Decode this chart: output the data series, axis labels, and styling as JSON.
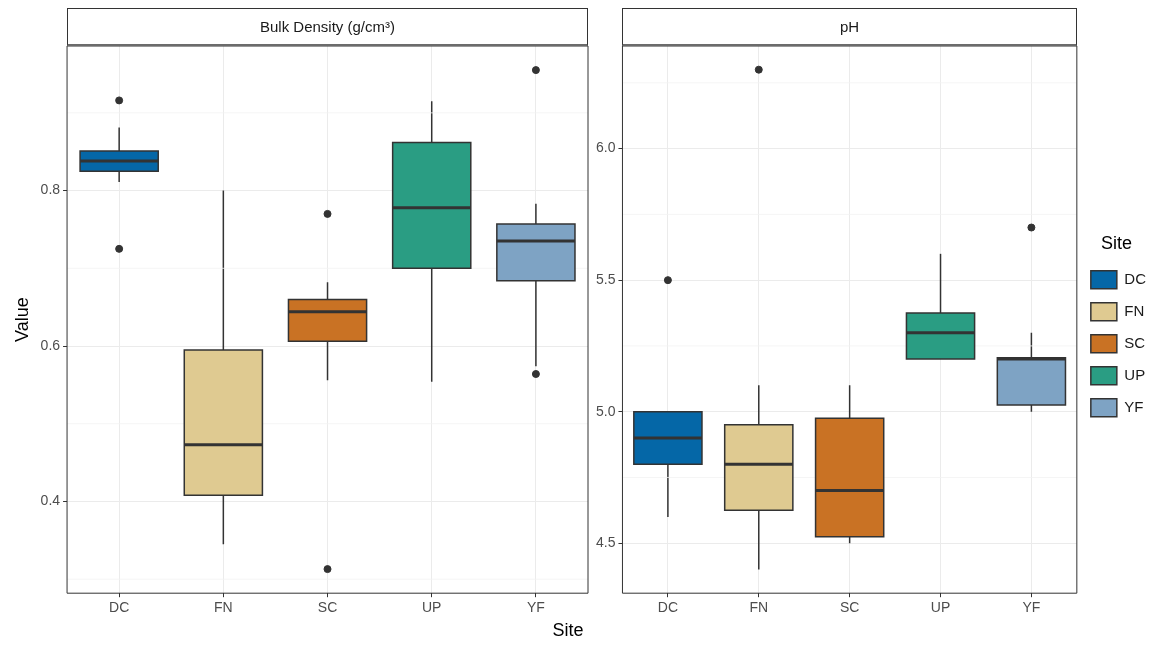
{
  "chart_data": [
    {
      "type": "box",
      "title": "Bulk Density (g/cm³)",
      "ylabel": "Value",
      "xlabel": "Site",
      "categories": [
        "DC",
        "FN",
        "SC",
        "UP",
        "YF"
      ],
      "series": [
        {
          "color": "#0567a7",
          "boxes": [
            {
              "low": 0.811,
              "q1": 0.825,
              "median": 0.838,
              "q3": 0.851,
              "high": 0.881,
              "outliers": [
                0.916,
                0.725
              ]
            },
            null,
            null,
            null,
            null
          ]
        },
        {
          "color": "#dfca91",
          "boxes": [
            null,
            {
              "low": 0.345,
              "q1": 0.408,
              "median": 0.473,
              "q3": 0.595,
              "high": 0.8
            },
            null,
            null,
            null
          ]
        },
        {
          "color": "#c97224",
          "boxes": [
            null,
            null,
            {
              "low": 0.556,
              "q1": 0.606,
              "median": 0.644,
              "q3": 0.66,
              "high": 0.682,
              "outliers": [
                0.77,
                0.313
              ]
            },
            null,
            null
          ]
        },
        {
          "color": "#2a9d83",
          "boxes": [
            null,
            null,
            null,
            {
              "low": 0.554,
              "q1": 0.7,
              "median": 0.778,
              "q3": 0.862,
              "high": 0.915
            },
            null
          ]
        },
        {
          "color": "#7ea3c4",
          "boxes": [
            null,
            null,
            null,
            null,
            {
              "low": 0.574,
              "q1": 0.684,
              "median": 0.735,
              "q3": 0.757,
              "high": 0.783,
              "outliers": [
                0.955,
                0.564
              ]
            }
          ]
        }
      ],
      "ylim": [
        0.282,
        0.986
      ],
      "yticks": [
        0.4,
        0.6,
        0.8
      ],
      "grid": true
    },
    {
      "type": "box",
      "title": "pH",
      "categories": [
        "DC",
        "FN",
        "SC",
        "UP",
        "YF"
      ],
      "series": [
        {
          "name": "DC",
          "color": "#0567a7",
          "boxes": [
            {
              "low": 4.6,
              "q1": 4.8,
              "median": 4.9,
              "q3": 5.0,
              "high": 5.0,
              "outliers": [
                5.5
              ]
            },
            null,
            null,
            null,
            null
          ]
        },
        {
          "name": "FN",
          "color": "#dfca91",
          "boxes": [
            null,
            {
              "low": 4.4,
              "q1": 4.625,
              "median": 4.8,
              "q3": 4.95,
              "high": 5.1,
              "outliers": [
                6.3
              ]
            },
            null,
            null,
            null
          ]
        },
        {
          "name": "SC",
          "color": "#c97224",
          "boxes": [
            null,
            null,
            {
              "low": 4.5,
              "q1": 4.525,
              "median": 4.7,
              "q3": 4.975,
              "high": 5.1
            },
            null,
            null
          ]
        },
        {
          "name": "UP",
          "color": "#2a9d83",
          "boxes": [
            null,
            null,
            null,
            {
              "low": 5.2,
              "q1": 5.2,
              "median": 5.3,
              "q3": 5.375,
              "high": 5.6
            },
            null
          ]
        },
        {
          "name": "YF",
          "color": "#7ea3c4",
          "boxes": [
            null,
            null,
            null,
            null,
            {
              "low": 5.0,
              "q1": 5.025,
              "median": 5.2,
              "q3": 5.205,
              "high": 5.3,
              "outliers": [
                5.7
              ]
            }
          ]
        }
      ],
      "ylim": [
        4.31,
        6.39
      ],
      "yticks": [
        4.5,
        {
          "value": 5,
          "label": "5.0"
        },
        5.5,
        {
          "value": 6,
          "label": "6.0"
        }
      ],
      "grid": true,
      "legend": "right",
      "legend_title": "Site"
    }
  ]
}
